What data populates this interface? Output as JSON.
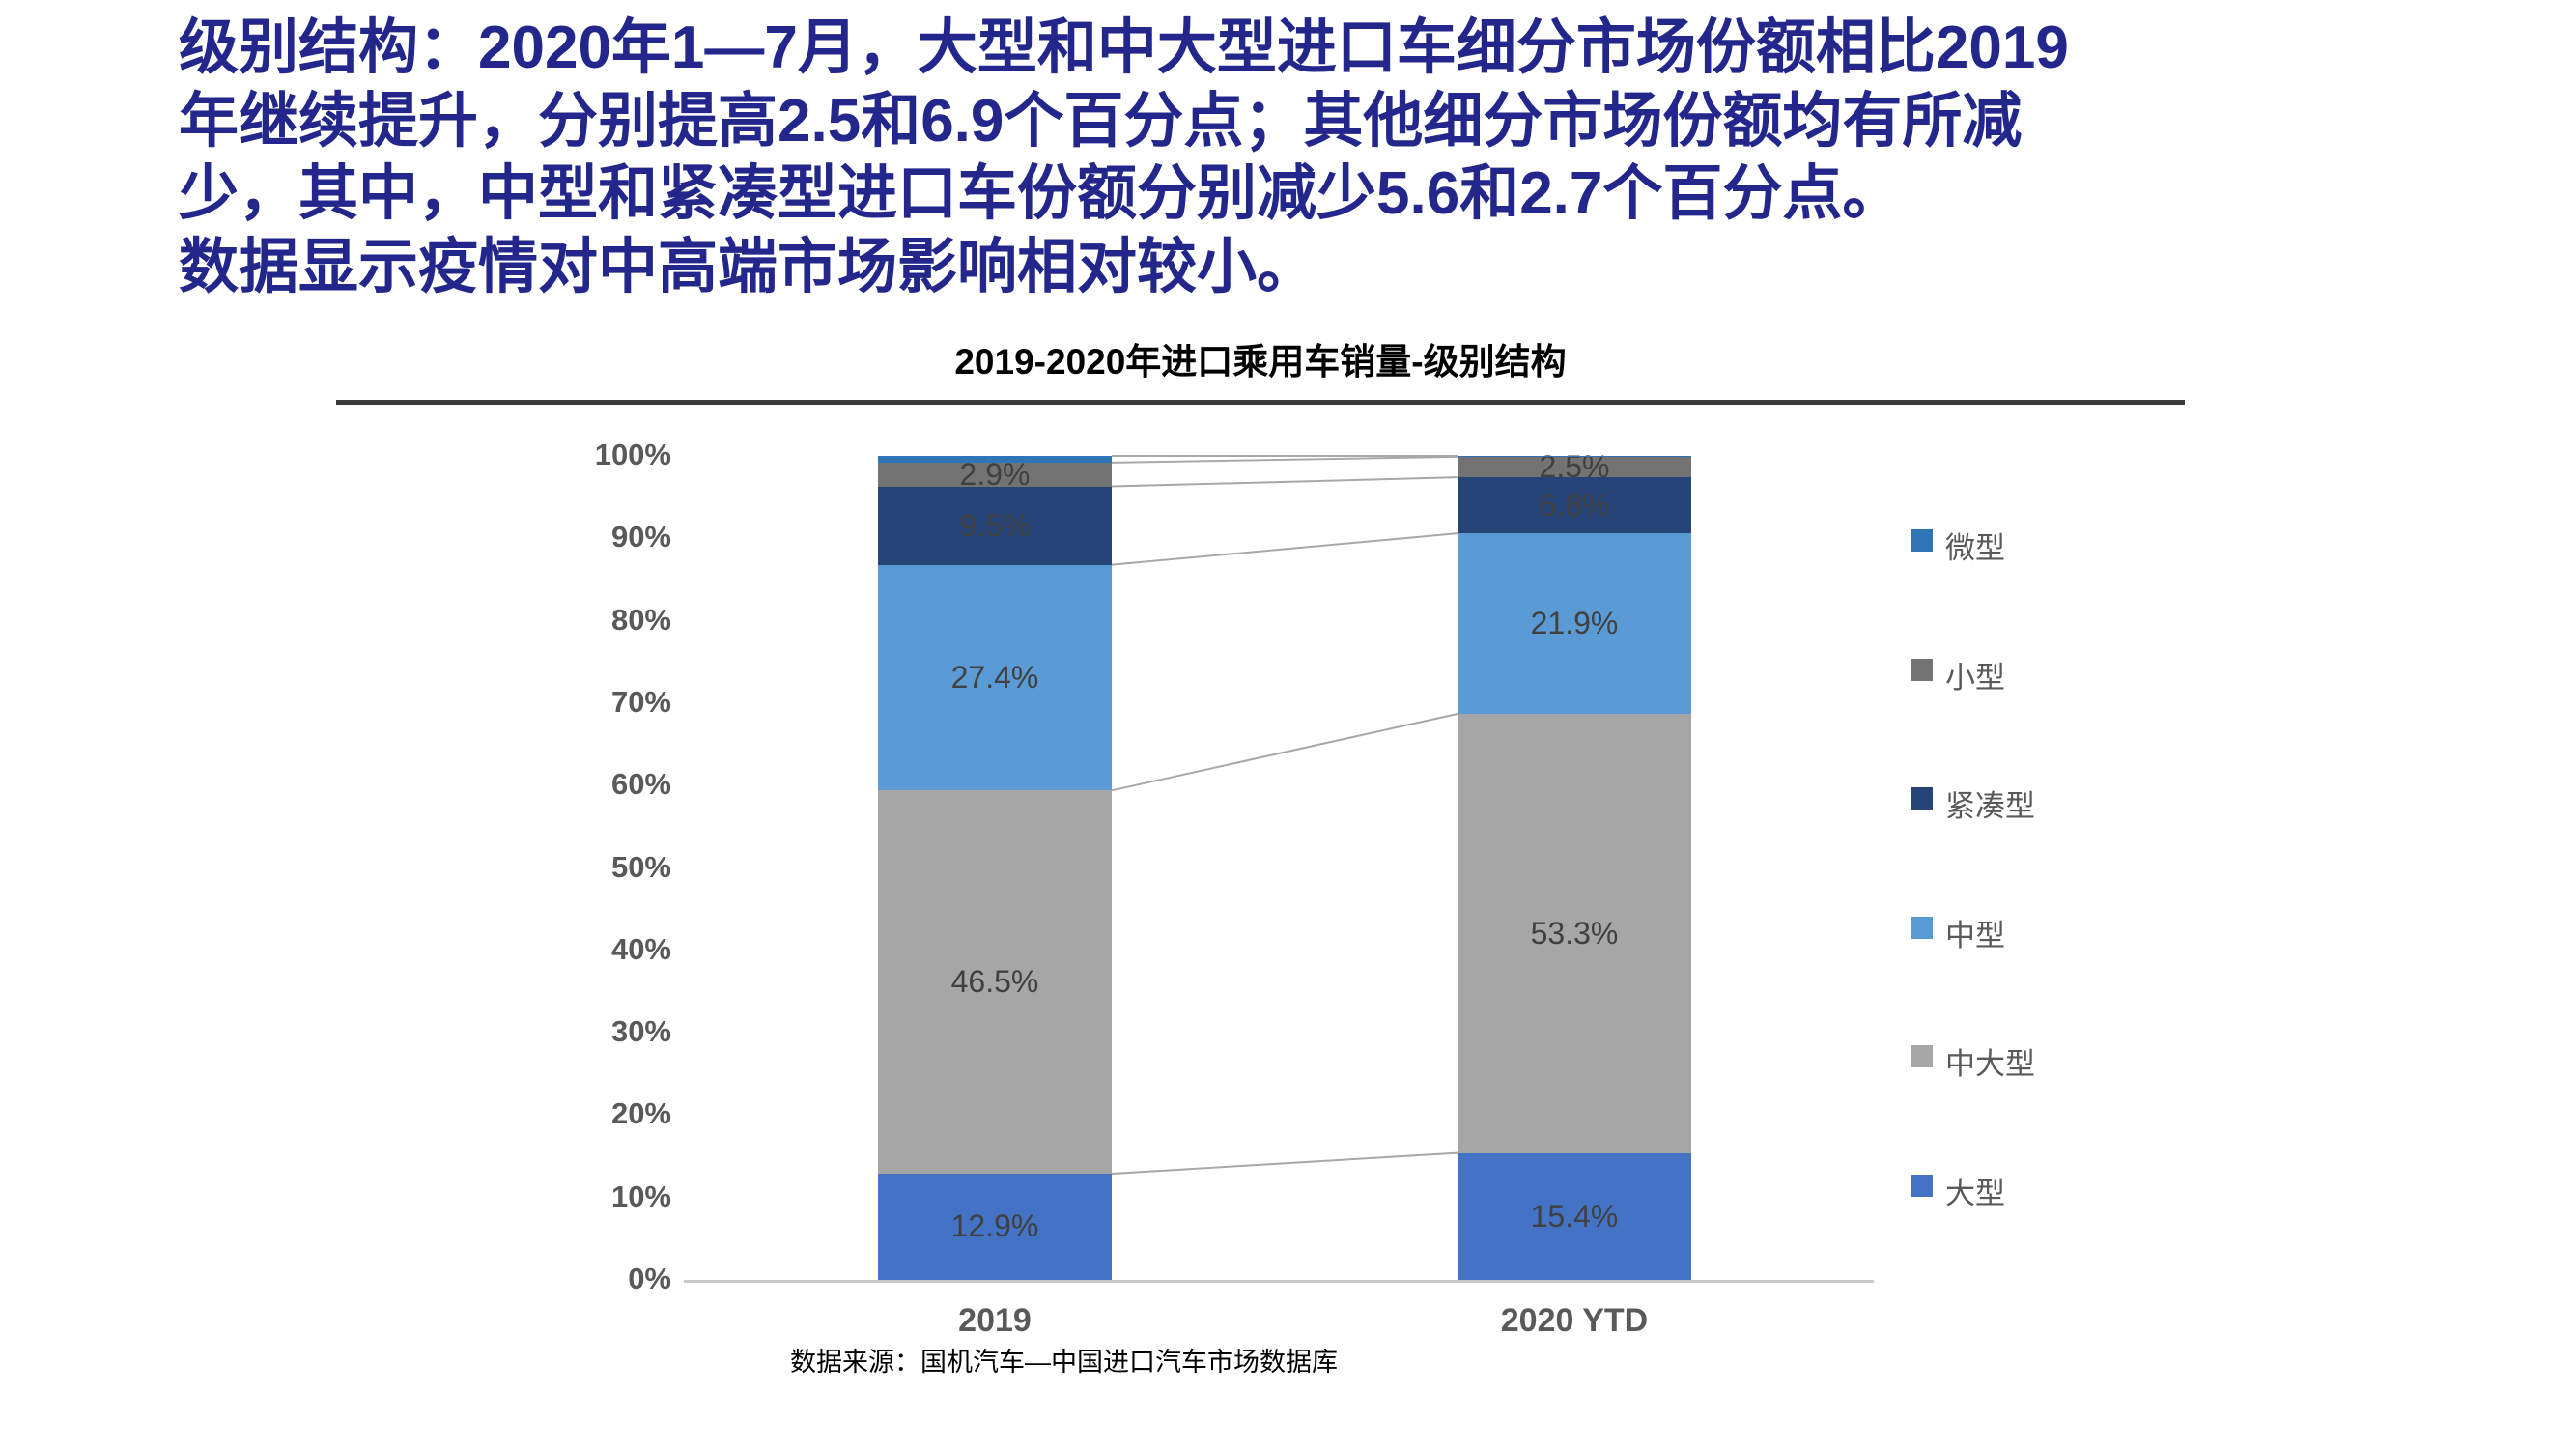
{
  "header": {
    "text": "级别结构：2020年1—7月，大型和中大型进口车细分市场份额相比2019\n年继续提升，分别提高2.5和6.9个百分点；其他细分市场份额均有所减\n少，其中，中型和紧凑型进口车份额分别减少5.6和2.7个百分点。\n数据显示疫情对中高端市场影响相对较小。",
    "color": "#23278B"
  },
  "chart_data": {
    "type": "bar",
    "stacked": true,
    "title": "2019-2020年进口乘用车销量-级别结构",
    "categories": [
      "2019",
      "2020 YTD"
    ],
    "series": [
      {
        "name": "大型",
        "color": "#4472C4",
        "values": [
          12.9,
          15.4
        ],
        "labels": [
          "12.9%",
          "15.4%"
        ]
      },
      {
        "name": "中大型",
        "color": "#A6A6A6",
        "values": [
          46.5,
          53.3
        ],
        "labels": [
          "46.5%",
          "53.3%"
        ]
      },
      {
        "name": "中型",
        "color": "#5B9BD5",
        "values": [
          27.4,
          21.9
        ],
        "labels": [
          "27.4%",
          "21.9%"
        ]
      },
      {
        "name": "紧凑型",
        "color": "#264478",
        "values": [
          9.5,
          6.8
        ],
        "labels": [
          "9.5%",
          "6.8%"
        ]
      },
      {
        "name": "小型",
        "color": "#737373",
        "values": [
          2.9,
          2.5
        ],
        "labels": [
          "2.9%",
          "2.5%"
        ]
      },
      {
        "name": "微型",
        "color": "#2E75B6",
        "values": [
          0.8,
          0.1
        ],
        "labels": [
          null,
          null
        ]
      }
    ],
    "y_ticks": [
      "0%",
      "10%",
      "20%",
      "30%",
      "40%",
      "50%",
      "60%",
      "70%",
      "80%",
      "90%",
      "100%"
    ],
    "ylim": [
      0,
      100
    ],
    "ylabel": "",
    "xlabel": "",
    "grid": false,
    "legend_position": "right",
    "legend_order_top_to_bottom": [
      "微型",
      "小型",
      "紧凑型",
      "中型",
      "中大型",
      "大型"
    ],
    "connector_lines": true,
    "connector_color": "#A8A8A8",
    "label_color": "#404040",
    "axis_text_color": "#595959"
  },
  "source_note": "数据来源：国机汽车—中国进口汽车市场数据库"
}
